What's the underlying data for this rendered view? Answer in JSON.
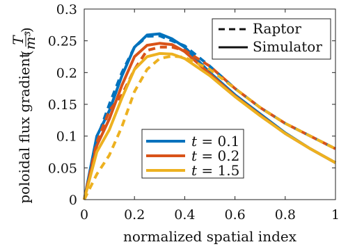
{
  "chart_data": {
    "type": "line",
    "xlabel": "normalized spatial index",
    "ylabel": "poloidal flux gradient",
    "ylabel_unit": "T/m³",
    "ylabel_unit_num": "T",
    "ylabel_unit_den": "m³",
    "xlim": [
      0,
      1
    ],
    "ylim": [
      0,
      0.3
    ],
    "xticks": [
      0,
      0.2,
      0.4,
      0.6,
      0.8,
      1
    ],
    "xtick_labels": [
      "0",
      "0.2",
      "0.4",
      "0.6",
      "0.8",
      "1"
    ],
    "yticks": [
      0,
      0.05,
      0.1,
      0.15,
      0.2,
      0.25,
      0.3
    ],
    "ytick_labels": [
      "0",
      "0.05",
      "0.1",
      "0.15",
      "0.2",
      "0.25",
      "0.3"
    ],
    "grid": false,
    "style_legend": {
      "placement": "top-right",
      "entries": [
        {
          "label": "Raptor",
          "dash": "dashed"
        },
        {
          "label": "Simulator",
          "dash": "solid"
        }
      ]
    },
    "color_legend": {
      "placement": "center-left",
      "entries": [
        {
          "label": "t = 0.1",
          "var": "t",
          "eq": " = 0.1",
          "color": "#0072BD"
        },
        {
          "label": "t = 0.2",
          "var": "t",
          "eq": " = 0.2",
          "color": "#D95319"
        },
        {
          "label": "t = 1.5",
          "var": "t",
          "eq": " = 1.5",
          "color": "#EDB120"
        }
      ]
    },
    "series": [
      {
        "time": "0.1",
        "source": "Simulator",
        "color": "#0072BD",
        "dash": "solid",
        "x": [
          0,
          0.05,
          0.1,
          0.15,
          0.2,
          0.25,
          0.3,
          0.35,
          0.4,
          0.5,
          0.6,
          0.7,
          0.8,
          0.9,
          1.0
        ],
        "y": [
          0,
          0.1,
          0.14,
          0.195,
          0.24,
          0.259,
          0.261,
          0.253,
          0.24,
          0.2,
          0.165,
          0.135,
          0.105,
          0.08,
          0.058
        ]
      },
      {
        "time": "0.1",
        "source": "Raptor",
        "color": "#0072BD",
        "dash": "dashed",
        "x": [
          0,
          0.05,
          0.1,
          0.15,
          0.2,
          0.25,
          0.3,
          0.35,
          0.4,
          0.5,
          0.6,
          0.7,
          0.8,
          0.9,
          1.0
        ],
        "y": [
          0,
          0.095,
          0.15,
          0.2,
          0.24,
          0.257,
          0.258,
          0.25,
          0.242,
          0.21,
          0.175,
          0.145,
          0.12,
          0.1,
          0.08
        ]
      },
      {
        "time": "0.2",
        "source": "Simulator",
        "color": "#D95319",
        "dash": "solid",
        "x": [
          0,
          0.05,
          0.1,
          0.15,
          0.2,
          0.25,
          0.3,
          0.35,
          0.4,
          0.5,
          0.6,
          0.7,
          0.8,
          0.9,
          1.0
        ],
        "y": [
          0,
          0.085,
          0.127,
          0.18,
          0.225,
          0.243,
          0.246,
          0.244,
          0.233,
          0.198,
          0.163,
          0.133,
          0.104,
          0.08,
          0.058
        ]
      },
      {
        "time": "0.2",
        "source": "Raptor",
        "color": "#D95319",
        "dash": "dashed",
        "x": [
          0,
          0.05,
          0.1,
          0.15,
          0.2,
          0.25,
          0.3,
          0.35,
          0.4,
          0.5,
          0.6,
          0.7,
          0.8,
          0.9,
          1.0
        ],
        "y": [
          0,
          0.09,
          0.14,
          0.165,
          0.205,
          0.235,
          0.24,
          0.24,
          0.235,
          0.21,
          0.175,
          0.145,
          0.12,
          0.1,
          0.08
        ]
      },
      {
        "time": "1.5",
        "source": "Simulator",
        "color": "#EDB120",
        "dash": "solid",
        "x": [
          0,
          0.05,
          0.1,
          0.15,
          0.2,
          0.25,
          0.3,
          0.35,
          0.4,
          0.5,
          0.6,
          0.7,
          0.8,
          0.9,
          1.0
        ],
        "y": [
          0,
          0.075,
          0.11,
          0.16,
          0.205,
          0.225,
          0.23,
          0.229,
          0.222,
          0.195,
          0.162,
          0.132,
          0.104,
          0.08,
          0.058
        ]
      },
      {
        "time": "1.5",
        "source": "Raptor",
        "color": "#EDB120",
        "dash": "dashed",
        "x": [
          0,
          0.05,
          0.1,
          0.15,
          0.2,
          0.25,
          0.3,
          0.35,
          0.4,
          0.5,
          0.6,
          0.7,
          0.8,
          0.9,
          1.0
        ],
        "y": [
          0,
          0.04,
          0.07,
          0.115,
          0.17,
          0.205,
          0.222,
          0.226,
          0.224,
          0.205,
          0.175,
          0.145,
          0.12,
          0.1,
          0.08
        ]
      }
    ]
  }
}
